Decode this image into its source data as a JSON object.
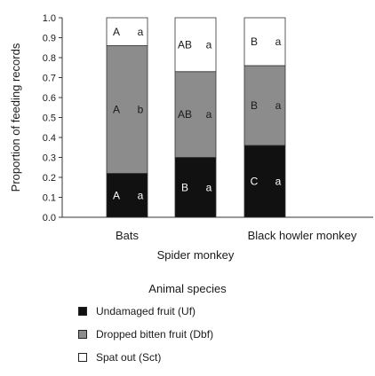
{
  "chart_data": {
    "type": "bar",
    "stacked": true,
    "categories": [
      "Bats",
      "Spider monkey",
      "Black howler monkey"
    ],
    "series": [
      {
        "name": "Undamaged fruit (Uf)",
        "color": "#111111",
        "values": [
          0.22,
          0.3,
          0.36
        ],
        "letters": [
          [
            "A",
            "a"
          ],
          [
            "B",
            "a"
          ],
          [
            "C",
            "a"
          ]
        ]
      },
      {
        "name": "Dropped bitten fruit (Dbf)",
        "color": "#8c8c8c",
        "values": [
          0.64,
          0.43,
          0.4
        ],
        "letters": [
          [
            "A",
            "b"
          ],
          [
            "AB",
            "a"
          ],
          [
            "B",
            "a"
          ]
        ]
      },
      {
        "name": "Spat out (Sct)",
        "color": "#ffffff",
        "values": [
          0.14,
          0.27,
          0.24
        ],
        "letters": [
          [
            "A",
            "a"
          ],
          [
            "AB",
            "a"
          ],
          [
            "B",
            "a"
          ]
        ]
      }
    ],
    "ylabel": "Proportion of feeding records",
    "ylim": [
      0,
      1.0
    ],
    "yticks": [
      "0.0",
      "0.1",
      "0.2",
      "0.3",
      "0.4",
      "0.5",
      "0.6",
      "0.7",
      "0.8",
      "0.9",
      "1.0"
    ],
    "legend_title": "Animal species",
    "grid": false,
    "legend_position": "bottom"
  }
}
